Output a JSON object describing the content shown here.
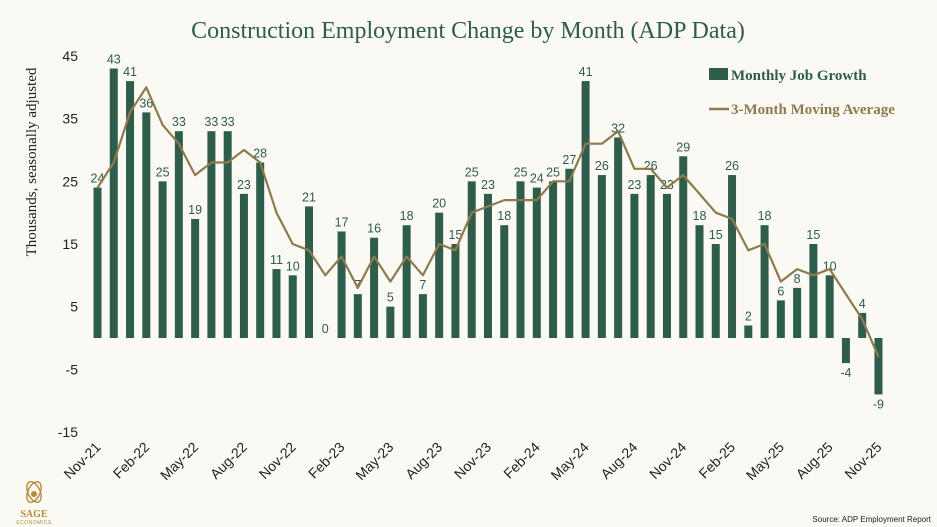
{
  "colors": {
    "bar": "#2f5d4c",
    "line": "#8f7a4e",
    "title": "#2f5d4c",
    "logo": "#b58a3a"
  },
  "logo": {
    "name": "SAGE",
    "sub": "ECONOMICS",
    "icon": "sage-leaf-icon"
  },
  "source": "Source: ADP Employment Report",
  "chart_data": {
    "type": "bar",
    "title": "Construction Employment Change by Month (ADP Data)",
    "ylabel": "Thousands, seasonally adjusted",
    "xlabel": "",
    "ylim": [
      -15,
      45
    ],
    "yticks": [
      45,
      35,
      25,
      15,
      5,
      -5,
      -15
    ],
    "xtick_labels": [
      "Nov-21",
      "Feb-22",
      "May-22",
      "Aug-22",
      "Nov-22",
      "Feb-23",
      "May-23",
      "Aug-23",
      "Nov-23",
      "Feb-24",
      "May-24",
      "Aug-24",
      "Nov-24",
      "Feb-25",
      "May-25",
      "Aug-25",
      "Nov-25"
    ],
    "xtick_indices": [
      0,
      3,
      6,
      9,
      12,
      15,
      18,
      21,
      24,
      27,
      30,
      33,
      36,
      39,
      42,
      45,
      48
    ],
    "legend": {
      "placement": "top-right",
      "bar_label": "Monthly Job Growth",
      "line_label": "3-Month Moving Average"
    },
    "categories": [
      "Nov-21",
      "Dec-21",
      "Jan-22",
      "Feb-22",
      "Mar-22",
      "Apr-22",
      "May-22",
      "Jun-22",
      "Jul-22",
      "Aug-22",
      "Sep-22",
      "Oct-22",
      "Nov-22",
      "Dec-22",
      "Jan-23",
      "Feb-23",
      "Mar-23",
      "Apr-23",
      "May-23",
      "Jun-23",
      "Jul-23",
      "Aug-23",
      "Sep-23",
      "Oct-23",
      "Nov-23",
      "Dec-23",
      "Jan-24",
      "Feb-24",
      "Mar-24",
      "Apr-24",
      "May-24",
      "Jun-24",
      "Jul-24",
      "Aug-24",
      "Sep-24",
      "Oct-24",
      "Nov-24",
      "Dec-24",
      "Jan-25",
      "Feb-25",
      "Mar-25",
      "Apr-25",
      "May-25",
      "Jun-25",
      "Jul-25",
      "Aug-25",
      "Sep-25",
      "Oct-25",
      "Nov-25"
    ],
    "series": [
      {
        "name": "Monthly Job Growth",
        "kind": "bar",
        "values": [
          24,
          43,
          41,
          36,
          25,
          33,
          19,
          33,
          33,
          23,
          28,
          11,
          10,
          21,
          0,
          17,
          7,
          16,
          5,
          18,
          7,
          20,
          15,
          25,
          23,
          18,
          25,
          24,
          25,
          27,
          41,
          26,
          32,
          23,
          26,
          23,
          29,
          18,
          15,
          26,
          2,
          18,
          6,
          8,
          15,
          10,
          -4,
          4,
          -9
        ]
      },
      {
        "name": "3-Month Moving Average",
        "kind": "line",
        "values": [
          24,
          28,
          36,
          40,
          34,
          31,
          26,
          28,
          28,
          30,
          28,
          20,
          15,
          14,
          10,
          13,
          8,
          13,
          9,
          13,
          10,
          15,
          14,
          20,
          21,
          22,
          22,
          22,
          25,
          25,
          31,
          31,
          33,
          27,
          27,
          24,
          26,
          23,
          20,
          19,
          14,
          15,
          9,
          11,
          10,
          11,
          7,
          3,
          -3
        ]
      }
    ],
    "data_labels": [
      "24",
      "43",
      "41",
      "36",
      "25",
      "33",
      "19",
      "33",
      "33",
      "23",
      "28",
      "11",
      "10",
      "21",
      "0",
      "17",
      "7",
      "16",
      "5",
      "18",
      "7",
      "20",
      "15",
      "25",
      "23",
      "18",
      "25",
      "24",
      "25",
      "27",
      "41",
      "26",
      "32",
      "23",
      "26",
      "23",
      "29",
      "18",
      "15",
      "26",
      "2",
      "18",
      "6",
      "8",
      "15",
      "10",
      "-4",
      "4",
      "-9"
    ]
  }
}
